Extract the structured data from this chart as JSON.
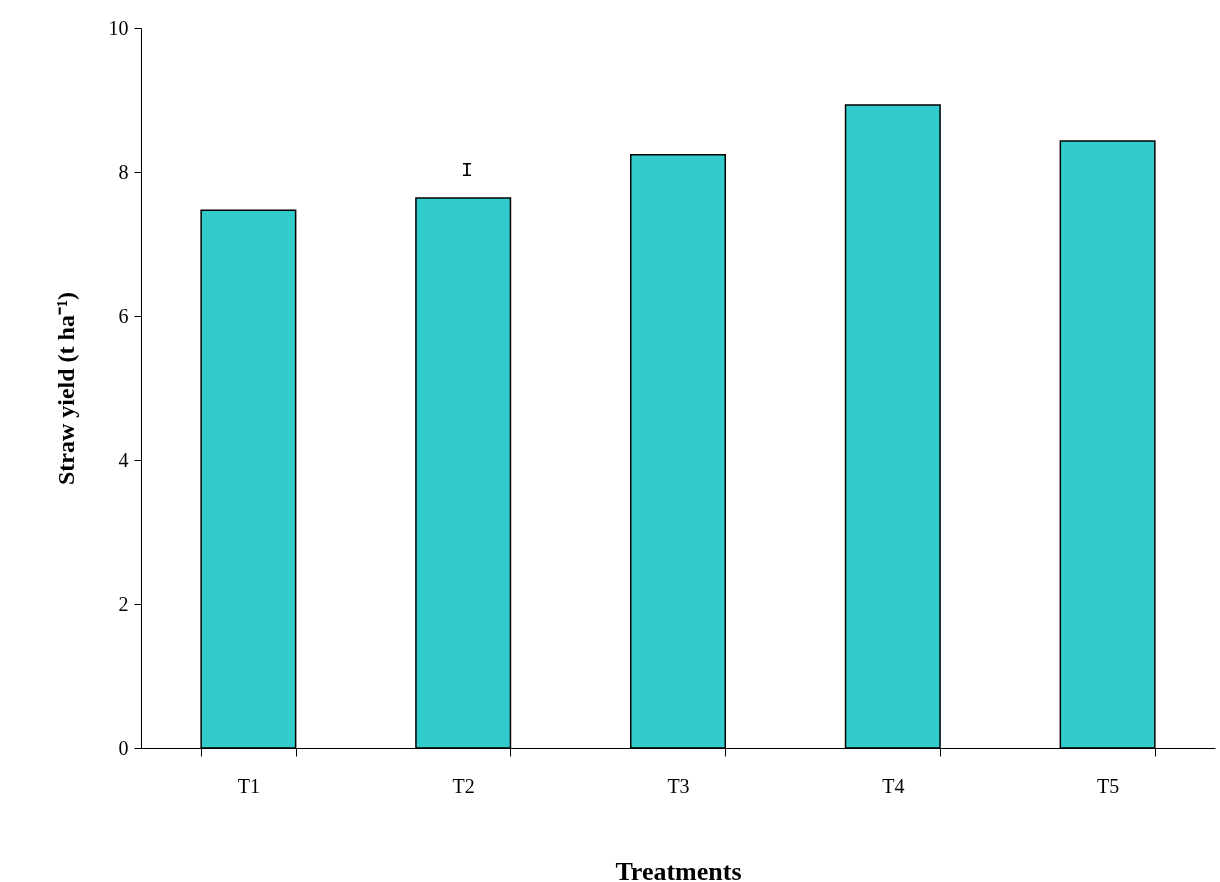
{
  "chart_data": {
    "type": "bar",
    "xlabel": "Treatments",
    "ylabel": "Straw yield (t ha⁻¹)",
    "categories": [
      "T1",
      "T2",
      "T3",
      "T4",
      "T5"
    ],
    "values": [
      7.47,
      7.64,
      8.24,
      8.93,
      8.43
    ],
    "color": "#33cccc",
    "ylim": [
      0,
      10
    ],
    "yticks": [
      0,
      2,
      4,
      6,
      8,
      10
    ],
    "grid": false,
    "annotations": [
      "I"
    ]
  }
}
